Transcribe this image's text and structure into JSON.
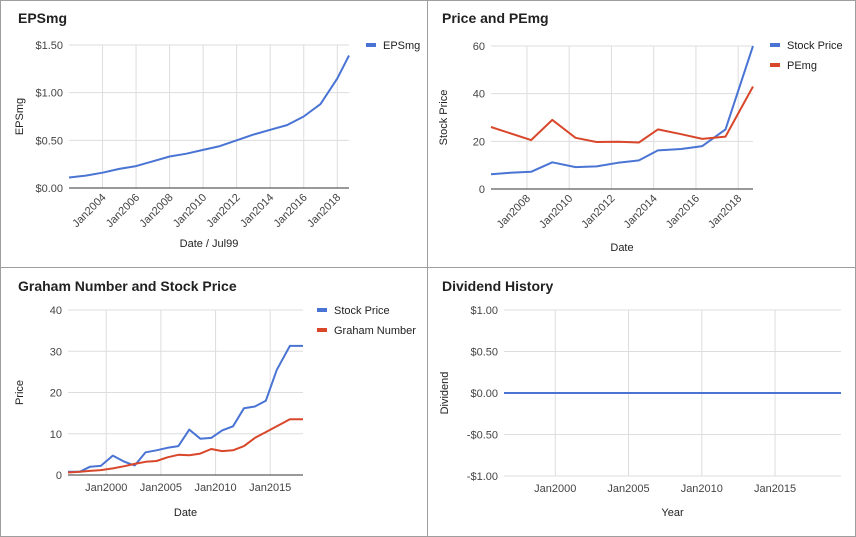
{
  "chart_data": [
    {
      "type": "line",
      "title": "EPSmg",
      "xlabel": "Date / Jul99",
      "ylabel": "EPSmg",
      "x_ticks": [
        "Jan2004",
        "Jan2006",
        "Jan2008",
        "Jan2010",
        "Jan2012",
        "Jan2014",
        "Jan2016",
        "Jan2018"
      ],
      "y_ticks": [
        "$0.00",
        "$0.50",
        "$1.00",
        "$1.50"
      ],
      "ylim": [
        0,
        1.5
      ],
      "xlim": [
        2002.0,
        2018.7
      ],
      "grid": true,
      "legend": "right",
      "series": [
        {
          "name": "EPSmg",
          "color": "#4a74d4",
          "x": [
            2002.0,
            2003.0,
            2004.0,
            2005.0,
            2006.0,
            2007.0,
            2008.0,
            2009.0,
            2010.0,
            2011.0,
            2012.0,
            2013.0,
            2014.0,
            2015.0,
            2016.0,
            2017.0,
            2018.0,
            2018.7
          ],
          "y": [
            0.11,
            0.13,
            0.16,
            0.2,
            0.23,
            0.28,
            0.33,
            0.36,
            0.4,
            0.44,
            0.5,
            0.56,
            0.61,
            0.66,
            0.75,
            0.88,
            1.15,
            1.39
          ]
        }
      ]
    },
    {
      "type": "line",
      "title": "Price and PEmg",
      "xlabel": "Date",
      "ylabel": "Stock Price",
      "x_ticks": [
        "Jan2008",
        "Jan2010",
        "Jan2012",
        "Jan2014",
        "Jan2016",
        "Jan2018"
      ],
      "y_ticks": [
        "0",
        "20",
        "40",
        "60"
      ],
      "ylim": [
        0,
        60
      ],
      "xlim": [
        2006.3,
        2018.7
      ],
      "grid": true,
      "legend": "right",
      "series": [
        {
          "name": "Stock Price",
          "color": "#4a74d4",
          "x": [
            2006.3,
            2007.2,
            2008.2,
            2009.2,
            2010.3,
            2011.3,
            2012.3,
            2013.3,
            2014.2,
            2015.3,
            2016.3,
            2017.4,
            2018.7
          ],
          "y": [
            6.2,
            6.8,
            7.2,
            11.2,
            9.2,
            9.5,
            11.0,
            12.0,
            16.2,
            16.8,
            18.0,
            25.0,
            60.0
          ]
        },
        {
          "name": "PEmg",
          "color": "#d9472b",
          "x": [
            2006.3,
            2008.2,
            2009.2,
            2010.3,
            2011.3,
            2012.3,
            2013.3,
            2014.2,
            2015.3,
            2016.3,
            2017.4,
            2018.7
          ],
          "y": [
            26.0,
            20.5,
            29.0,
            21.5,
            19.7,
            19.8,
            19.5,
            25.0,
            23.0,
            21.0,
            22.0,
            43.0
          ]
        }
      ]
    },
    {
      "type": "line",
      "title": "Graham Number and Stock Price",
      "xlabel": "Date",
      "ylabel": "Price",
      "x_ticks": [
        "Jan2000",
        "Jan2005",
        "Jan2010",
        "Jan2015"
      ],
      "y_ticks": [
        "0",
        "10",
        "20",
        "30",
        "40"
      ],
      "ylim": [
        0,
        40
      ],
      "xlim": [
        1996.5,
        2018.0
      ],
      "grid": true,
      "legend": "right",
      "series": [
        {
          "name": "Stock Price",
          "color": "#4a74d4",
          "x": [
            1996.5,
            1997.6,
            1998.5,
            1999.5,
            2000.6,
            2001.6,
            2002.6,
            2003.6,
            2004.6,
            2005.6,
            2006.6,
            2007.6,
            2008.6,
            2009.6,
            2010.6,
            2011.6,
            2012.6,
            2013.6,
            2014.6,
            2015.6,
            2016.8,
            2018.0
          ],
          "y": [
            0.8,
            0.8,
            2.0,
            2.2,
            4.7,
            3.3,
            2.3,
            5.5,
            6.0,
            6.6,
            7.0,
            11.0,
            8.8,
            9.0,
            10.8,
            11.8,
            16.2,
            16.6,
            18.0,
            25.5,
            31.3,
            31.3
          ]
        },
        {
          "name": "Graham Number",
          "color": "#d9472b",
          "x": [
            1996.5,
            1997.6,
            1998.5,
            1999.5,
            2000.6,
            2001.6,
            2002.6,
            2003.6,
            2004.6,
            2005.6,
            2006.6,
            2007.6,
            2008.6,
            2009.6,
            2010.6,
            2011.6,
            2012.6,
            2013.6,
            2014.6,
            2015.6,
            2016.8,
            2018.0
          ],
          "y": [
            0.6,
            0.8,
            1.0,
            1.2,
            1.6,
            2.1,
            2.7,
            3.2,
            3.4,
            4.3,
            4.9,
            4.8,
            5.2,
            6.3,
            5.8,
            6.0,
            7.0,
            9.0,
            10.4,
            11.8,
            13.5,
            13.5
          ]
        }
      ]
    },
    {
      "type": "line",
      "title": "Dividend History",
      "xlabel": "Year",
      "ylabel": "Dividend",
      "x_ticks": [
        "Jan2000",
        "Jan2005",
        "Jan2010",
        "Jan2015"
      ],
      "y_ticks": [
        "-$1.00",
        "-$0.50",
        "$0.00",
        "$0.50",
        "$1.00"
      ],
      "ylim": [
        -1,
        1
      ],
      "xlim": [
        1996.5,
        2019.5
      ],
      "grid": true,
      "series": [
        {
          "name": "",
          "color": "#4a74d4",
          "x": [
            1996.5,
            2019.5
          ],
          "y": [
            0,
            0
          ]
        }
      ]
    }
  ]
}
